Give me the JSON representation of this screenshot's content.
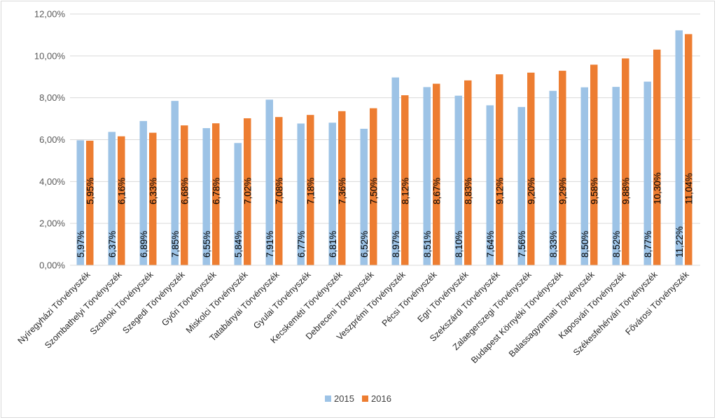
{
  "chart_data": {
    "type": "bar",
    "categories": [
      "Nyíregyházi Törvényszék",
      "Szombathelyi Törvényszék",
      "Szolnoki Törvényszék",
      "Szegedi Törvényszék",
      "Győri Törvényszék",
      "Miskolci Törvényszék",
      "Tatabányai Törvényszék",
      "Gyulai Törvényszék",
      "Kecskeméti Törvényszék",
      "Debreceni Törvényszék",
      "Veszprémi Törvényszék",
      "Pécsi Törvényszék",
      "Egri Törvényszék",
      "Szekszárdi Törvényszék",
      "Zalaegerszegi Törvényszék",
      "Budapest Környéki Törvényszék",
      "Balassagyarmati Törvényszék",
      "Kaposvári Törvényszék",
      "Székesfehérvári Törvényszék",
      "Fővárosi Törvényszék"
    ],
    "series": [
      {
        "name": "2015",
        "color": "#9dc3e6",
        "values": [
          5.97,
          6.37,
          6.89,
          7.85,
          6.55,
          5.84,
          7.91,
          6.77,
          6.81,
          6.52,
          8.97,
          8.51,
          8.1,
          7.64,
          7.56,
          8.33,
          8.5,
          8.52,
          8.77,
          11.22
        ],
        "labels": [
          "5,97%",
          "6,37%",
          "6,89%",
          "7,85%",
          "6,55%",
          "5,84%",
          "7,91%",
          "6,77%",
          "6,81%",
          "6,52%",
          "8,97%",
          "8,51%",
          "8,10%",
          "7,64%",
          "7,56%",
          "8,33%",
          "8,50%",
          "8,52%",
          "8,77%",
          "11,22%"
        ]
      },
      {
        "name": "2016",
        "color": "#ed7d31",
        "values": [
          5.95,
          6.16,
          6.33,
          6.68,
          6.78,
          7.02,
          7.08,
          7.18,
          7.36,
          7.5,
          8.12,
          8.67,
          8.83,
          9.12,
          9.2,
          9.29,
          9.58,
          9.88,
          10.3,
          11.04
        ],
        "labels": [
          "5,95%",
          "6,16%",
          "6,33%",
          "6,68%",
          "6,78%",
          "7,02%",
          "7,08%",
          "7,18%",
          "7,36%",
          "7,50%",
          "8,12%",
          "8,67%",
          "8,83%",
          "9,12%",
          "9,20%",
          "9,29%",
          "9,58%",
          "9,88%",
          "10,30%",
          "11,04%"
        ]
      }
    ],
    "ylim": [
      0,
      12
    ],
    "yticks": [
      "0,00%",
      "2,00%",
      "4,00%",
      "6,00%",
      "8,00%",
      "10,00%",
      "12,00%"
    ],
    "grid": true,
    "legend_position": "bottom",
    "axis_color": "#d9d9d9"
  }
}
